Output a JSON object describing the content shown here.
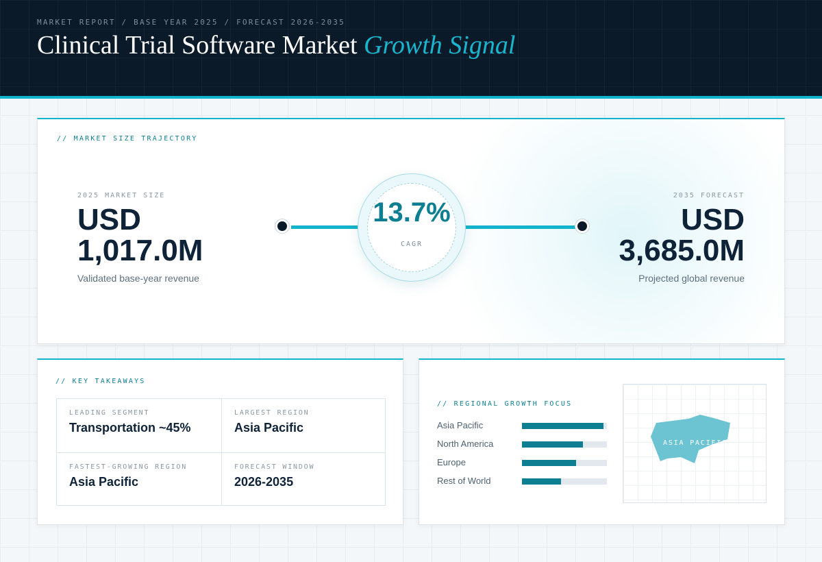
{
  "header": {
    "eyebrow": "MARKET REPORT / BASE YEAR 2025 / FORECAST 2026-2035",
    "title_main": "Clinical Trial Software Market",
    "title_accent": "Growth Signal"
  },
  "trajectory": {
    "label": "// MARKET SIZE TRAJECTORY",
    "start": {
      "label": "2025 MARKET SIZE",
      "currency": "USD",
      "value": "1,017.0M",
      "sub": "Validated base-year revenue"
    },
    "end": {
      "label": "2035 FORECAST",
      "currency": "USD",
      "value": "3,685.0M",
      "sub": "Projected global revenue"
    },
    "cagr": {
      "value": "13.7%",
      "label": "CAGR"
    }
  },
  "takeaways": {
    "label": "// KEY TAKEAWAYS",
    "items": [
      {
        "label": "LEADING SEGMENT",
        "value": "Transportation ~45%"
      },
      {
        "label": "LARGEST REGION",
        "value": "Asia Pacific"
      },
      {
        "label": "FASTEST-GROWING REGION",
        "value": "Asia Pacific"
      },
      {
        "label": "FORECAST WINDOW",
        "value": "2026-2035"
      }
    ]
  },
  "regional": {
    "label": "// REGIONAL GROWTH FOCUS",
    "bar_color": "#0e7f93",
    "items": [
      {
        "name": "Asia Pacific",
        "share": 0.96
      },
      {
        "name": "North America",
        "share": 0.72
      },
      {
        "name": "Europe",
        "share": 0.64
      },
      {
        "name": "Rest of World",
        "share": 0.46
      }
    ],
    "map_label": "ASIA PACIFIC"
  },
  "colors": {
    "accent": "#12b3cc",
    "teal": "#0e7f93",
    "navy": "#0b1a28"
  }
}
